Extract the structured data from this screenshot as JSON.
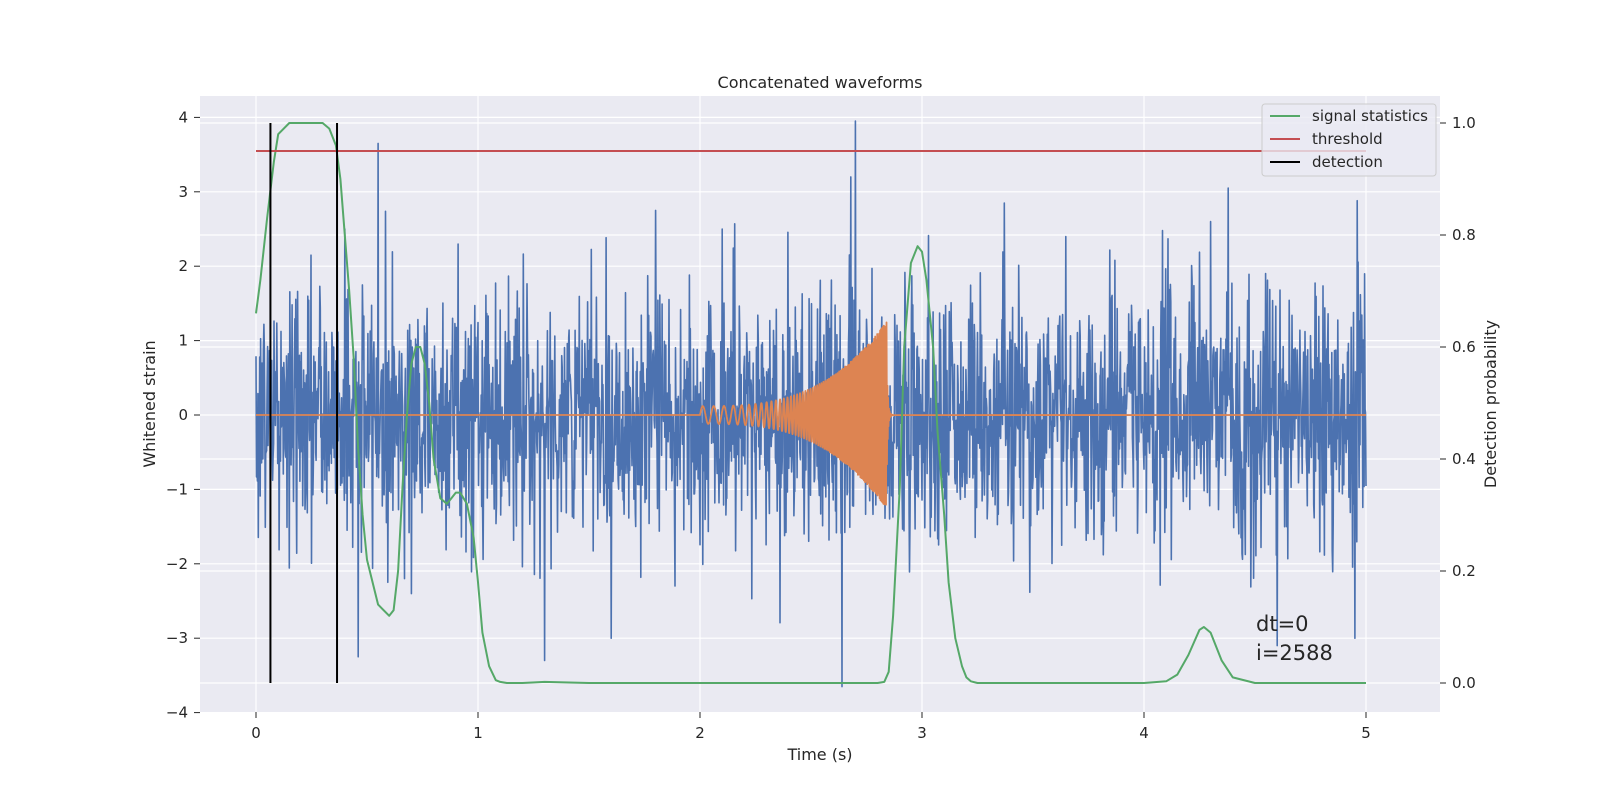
{
  "chart_data": {
    "type": "line",
    "title": "Concatenated waveforms",
    "xlabel": "Time (s)",
    "ylabel": "Whitened strain",
    "y2label": "Detection probability",
    "xlim": [
      -0.25,
      5.25
    ],
    "ylim": [
      -4.1,
      4.3
    ],
    "y2lim": [
      -0.045,
      1.05
    ],
    "xticks": [
      0,
      1,
      2,
      3,
      4,
      5
    ],
    "xtick_labels": [
      "0",
      "1",
      "2",
      "3",
      "4",
      "5"
    ],
    "yticks": [
      -4,
      -3,
      -2,
      -1,
      0,
      1,
      2,
      3,
      4
    ],
    "ytick_labels": [
      "−4",
      "−3",
      "−2",
      "−1",
      "0",
      "1",
      "2",
      "3",
      "4"
    ],
    "y2ticks": [
      0.0,
      0.2,
      0.4,
      0.6,
      0.8,
      1.0
    ],
    "y2tick_labels": [
      "0.0",
      "0.2",
      "0.4",
      "0.6",
      "0.8",
      "1.0"
    ],
    "grid": true,
    "legend_position": "top-right",
    "colors": {
      "background": "#eaeaf2",
      "grid": "#ffffff",
      "strain": "#4c72b0",
      "waveform": "#dd8452",
      "signal_statistics": "#55a868",
      "threshold": "#c44e52",
      "detection": "#000000"
    },
    "series": [
      {
        "name": "",
        "axis": "left",
        "kind": "noise",
        "x_range": [
          0,
          5
        ],
        "std": 0.85,
        "spikes": [
          [
            0.55,
            3.65
          ],
          [
            2.7,
            3.95
          ],
          [
            2.64,
            -3.65
          ],
          [
            1.3,
            -3.3
          ],
          [
            0.46,
            -3.25
          ],
          [
            1.6,
            -3.0
          ],
          [
            4.95,
            -3.0
          ],
          [
            4.6,
            -3.1
          ],
          [
            0.4,
            2.5
          ],
          [
            2.68,
            3.2
          ],
          [
            4.38,
            3.05
          ],
          [
            4.96,
            2.88
          ],
          [
            1.8,
            2.75
          ],
          [
            3.37,
            2.85
          ],
          [
            4.3,
            2.6
          ]
        ]
      },
      {
        "name": "",
        "axis": "left",
        "kind": "chirp",
        "x_range": [
          0,
          5
        ],
        "chirp_start": 2.0,
        "chirp_end": 2.84,
        "amp_start": 0.12,
        "amp_end": 1.25
      },
      {
        "name": "signal statistics",
        "axis": "right",
        "x": [
          0,
          0.02,
          0.05,
          0.08,
          0.1,
          0.15,
          0.2,
          0.25,
          0.3,
          0.33,
          0.36,
          0.38,
          0.4,
          0.42,
          0.44,
          0.46,
          0.48,
          0.5,
          0.55,
          0.6,
          0.62,
          0.64,
          0.66,
          0.68,
          0.7,
          0.72,
          0.74,
          0.76,
          0.78,
          0.8,
          0.83,
          0.86,
          0.88,
          0.9,
          0.92,
          0.95,
          0.98,
          1.0,
          1.02,
          1.05,
          1.08,
          1.1,
          1.13,
          1.2,
          1.3,
          1.5,
          2.0,
          2.5,
          2.8,
          2.83,
          2.85,
          2.87,
          2.9,
          2.92,
          2.95,
          2.98,
          3.0,
          3.02,
          3.05,
          3.07,
          3.1,
          3.12,
          3.15,
          3.18,
          3.2,
          3.22,
          3.25,
          3.3,
          3.5,
          4.0,
          4.1,
          4.15,
          4.2,
          4.25,
          4.27,
          4.3,
          4.35,
          4.4,
          4.5,
          4.7,
          5.0
        ],
        "y": [
          0.66,
          0.72,
          0.83,
          0.93,
          0.98,
          1.0,
          1.0,
          1.0,
          1.0,
          0.99,
          0.96,
          0.9,
          0.8,
          0.7,
          0.58,
          0.42,
          0.3,
          0.22,
          0.14,
          0.12,
          0.13,
          0.2,
          0.35,
          0.48,
          0.57,
          0.6,
          0.6,
          0.57,
          0.5,
          0.4,
          0.33,
          0.32,
          0.33,
          0.34,
          0.34,
          0.32,
          0.26,
          0.18,
          0.09,
          0.03,
          0.005,
          0.002,
          0.0,
          0.0,
          0.002,
          0.0,
          0.0,
          0.0,
          0.0,
          0.002,
          0.02,
          0.12,
          0.35,
          0.6,
          0.75,
          0.78,
          0.77,
          0.72,
          0.6,
          0.45,
          0.3,
          0.18,
          0.08,
          0.03,
          0.01,
          0.003,
          0.0,
          0.0,
          0.0,
          0.0,
          0.003,
          0.015,
          0.05,
          0.095,
          0.1,
          0.09,
          0.04,
          0.01,
          0.0,
          0.0,
          0.0
        ]
      },
      {
        "name": "threshold",
        "axis": "right",
        "x": [
          0,
          5
        ],
        "y": [
          0.95,
          0.95
        ]
      },
      {
        "name": "detection",
        "axis": "right",
        "kind": "vlines",
        "x": [
          0.065,
          0.365
        ],
        "ymin": 0.0,
        "ymax": 1.0
      }
    ],
    "annotations": [
      "dt=0",
      "i=2588"
    ]
  }
}
